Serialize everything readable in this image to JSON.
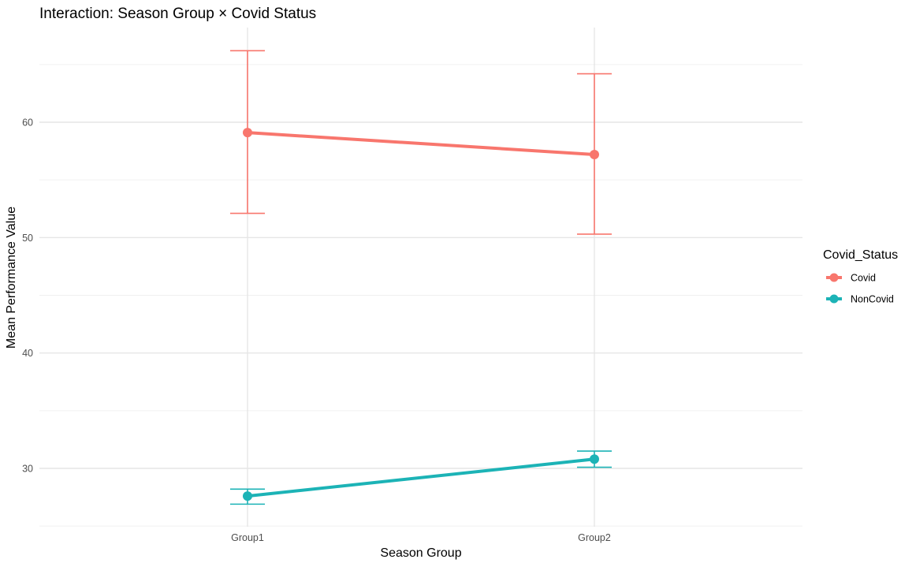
{
  "chart_data": {
    "type": "line",
    "title": "Interaction: Season Group × Covid Status",
    "xlabel": "Season Group",
    "ylabel": "Mean Performance Value",
    "categories": [
      "Group1",
      "Group2"
    ],
    "ylim": [
      25,
      68
    ],
    "yticks": [
      30,
      40,
      50,
      60
    ],
    "grid": true,
    "legend": {
      "title": "Covid_Status",
      "position": "right"
    },
    "series": [
      {
        "name": "Covid",
        "color": "#F8766D",
        "values": [
          59.1,
          57.2
        ],
        "error_low": [
          52.1,
          50.3
        ],
        "error_high": [
          66.2,
          64.2
        ]
      },
      {
        "name": "NonCovid",
        "color": "#1CB3B6",
        "values": [
          27.6,
          30.8
        ],
        "error_low": [
          26.9,
          30.1
        ],
        "error_high": [
          28.2,
          31.5
        ]
      }
    ]
  }
}
